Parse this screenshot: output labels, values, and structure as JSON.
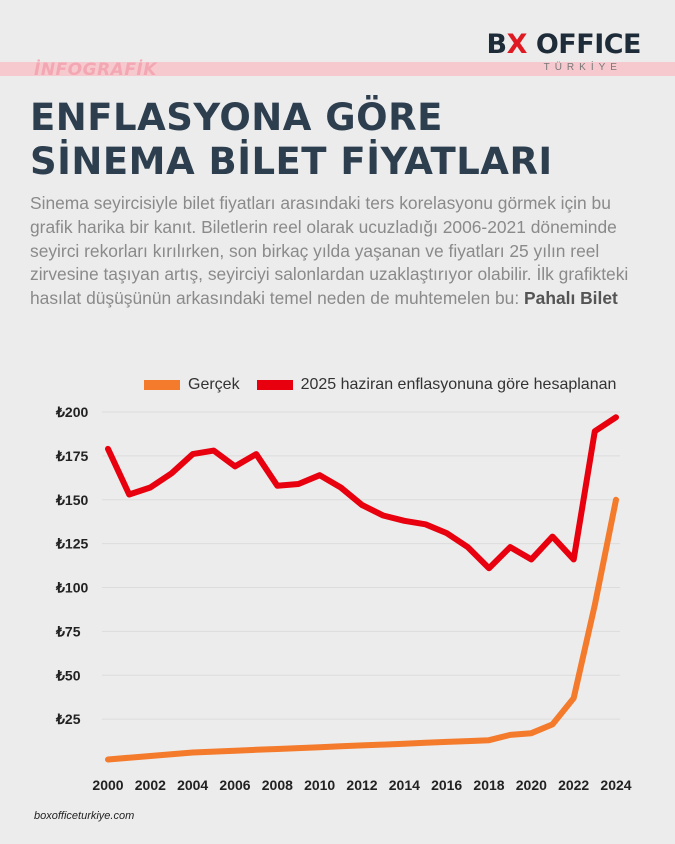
{
  "header": {
    "tag": "İNFOGRAFİK",
    "logo_left": "B",
    "logo_x": "X",
    "logo_right": " OFFICE",
    "logo_sub": "TÜRKİYE",
    "title_line1": "ENFLASYONA GÖRE",
    "title_line2": "SİNEMA BİLET FİYATLARI",
    "description": "Sinema seyircisiyle bilet fiyatları arasındaki ters korelasyonu görmek için bu grafik harika bir kanıt. Biletlerin reel olarak ucuzladığı 2006-2021 döneminde seyirci rekorları kırılırken, son birkaç yılda yaşanan ve fiyatları 25 yılın reel zirvesine taşıyan artış, seyirciyi salonlardan uzaklaştırıyor olabilir. İlk grafikteki hasılat düşüşünün arkasındaki temel neden de muhtemelen bu:",
    "description_bold": "Pahalı Bilet"
  },
  "colors": {
    "real": "#f47a2c",
    "inflation": "#e8000e",
    "title": "#2d3e4f",
    "band": "#f6c9cf"
  },
  "chart_data": {
    "type": "line",
    "x": [
      2000,
      2001,
      2002,
      2003,
      2004,
      2005,
      2006,
      2007,
      2008,
      2009,
      2010,
      2011,
      2012,
      2013,
      2014,
      2015,
      2016,
      2017,
      2018,
      2019,
      2020,
      2021,
      2022,
      2023,
      2024
    ],
    "xticks": [
      "2000",
      "2002",
      "2004",
      "2006",
      "2008",
      "2010",
      "2012",
      "2014",
      "2016",
      "2018",
      "2020",
      "2022",
      "2024"
    ],
    "yticks": [
      "₺25",
      "₺50",
      "₺75",
      "₺100",
      "₺125",
      "₺150",
      "₺175",
      "₺200"
    ],
    "ylim": [
      0,
      200
    ],
    "grid": true,
    "legend_position": "top",
    "series": [
      {
        "name": "Gerçek",
        "values": [
          2,
          3,
          4,
          5,
          6,
          6.5,
          7,
          7.5,
          8,
          8.5,
          9,
          9.5,
          10,
          10.5,
          11,
          11.5,
          12,
          12.5,
          13,
          16,
          17,
          22,
          37,
          90,
          150
        ]
      },
      {
        "name": "2025 haziran enflasyonuna göre hesaplanan",
        "values": [
          179,
          153,
          157,
          165,
          176,
          178,
          169,
          176,
          158,
          159,
          164,
          157,
          147,
          141,
          138,
          136,
          131,
          123,
          111,
          123,
          116,
          129,
          116,
          189,
          197
        ]
      }
    ]
  },
  "footer": {
    "source": "boxofficeturkiye.com"
  }
}
